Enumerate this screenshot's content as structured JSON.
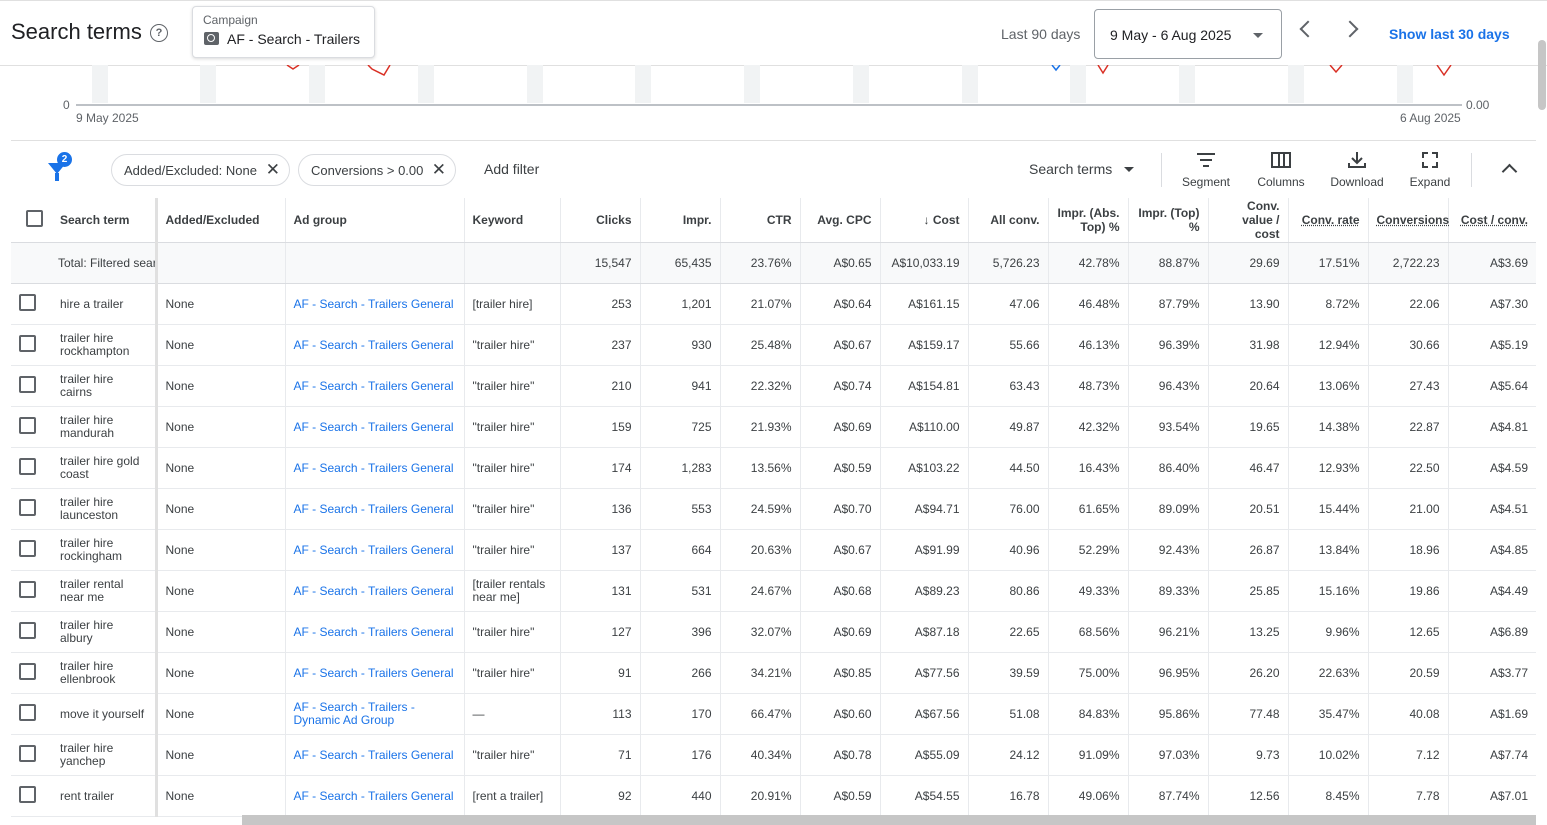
{
  "header": {
    "title": "Search terms",
    "campaign_label": "Campaign",
    "campaign_name": "AF - Search - Trailers",
    "date_label": "Last 90 days",
    "date_range": "9 May - 6 Aug 2025",
    "show_last": "Show last 30 days"
  },
  "chart": {
    "y_left_min": "0",
    "y_right_min": "0.00",
    "x_start": "9 May 2025",
    "x_end": "6 Aug 2025"
  },
  "filters": {
    "count": "2",
    "chips": [
      "Added/Excluded: None",
      "Conversions > 0.00"
    ],
    "add_filter": "Add filter",
    "view": "Search terms"
  },
  "toolbar": {
    "segment": "Segment",
    "columns": "Columns",
    "download": "Download",
    "expand": "Expand"
  },
  "table": {
    "headers": [
      "Search term",
      "Added/Excluded",
      "Ad group",
      "Keyword",
      "Clicks",
      "Impr.",
      "CTR",
      "Avg. CPC",
      "Cost",
      "All conv.",
      "Impr. (Abs. Top) %",
      "Impr. (Top) %",
      "Conv. value / cost",
      "Conv. rate",
      "Conversions",
      "Cost / conv."
    ],
    "total": [
      "Total: Filtered search ...",
      "",
      "",
      "",
      "15,547",
      "65,435",
      "23.76%",
      "A$0.65",
      "A$10,033.19",
      "5,726.23",
      "42.78%",
      "88.87%",
      "29.69",
      "17.51%",
      "2,722.23",
      "A$3.69"
    ],
    "rows": [
      [
        "hire a trailer",
        "None",
        "AF - Search - Trailers General",
        "[trailer hire]",
        "253",
        "1,201",
        "21.07%",
        "A$0.64",
        "A$161.15",
        "47.06",
        "46.48%",
        "87.79%",
        "13.90",
        "8.72%",
        "22.06",
        "A$7.30"
      ],
      [
        "trailer hire rockhampton",
        "None",
        "AF - Search - Trailers General",
        "\"trailer hire\"",
        "237",
        "930",
        "25.48%",
        "A$0.67",
        "A$159.17",
        "55.66",
        "46.13%",
        "96.39%",
        "31.98",
        "12.94%",
        "30.66",
        "A$5.19"
      ],
      [
        "trailer hire cairns",
        "None",
        "AF - Search - Trailers General",
        "\"trailer hire\"",
        "210",
        "941",
        "22.32%",
        "A$0.74",
        "A$154.81",
        "63.43",
        "48.73%",
        "96.43%",
        "20.64",
        "13.06%",
        "27.43",
        "A$5.64"
      ],
      [
        "trailer hire mandurah",
        "None",
        "AF - Search - Trailers General",
        "\"trailer hire\"",
        "159",
        "725",
        "21.93%",
        "A$0.69",
        "A$110.00",
        "49.87",
        "42.32%",
        "93.54%",
        "19.65",
        "14.38%",
        "22.87",
        "A$4.81"
      ],
      [
        "trailer hire gold coast",
        "None",
        "AF - Search - Trailers General",
        "\"trailer hire\"",
        "174",
        "1,283",
        "13.56%",
        "A$0.59",
        "A$103.22",
        "44.50",
        "16.43%",
        "86.40%",
        "46.47",
        "12.93%",
        "22.50",
        "A$4.59"
      ],
      [
        "trailer hire launceston",
        "None",
        "AF - Search - Trailers General",
        "\"trailer hire\"",
        "136",
        "553",
        "24.59%",
        "A$0.70",
        "A$94.71",
        "76.00",
        "61.65%",
        "89.09%",
        "20.51",
        "15.44%",
        "21.00",
        "A$4.51"
      ],
      [
        "trailer hire rockingham",
        "None",
        "AF - Search - Trailers General",
        "\"trailer hire\"",
        "137",
        "664",
        "20.63%",
        "A$0.67",
        "A$91.99",
        "40.96",
        "52.29%",
        "92.43%",
        "26.87",
        "13.84%",
        "18.96",
        "A$4.85"
      ],
      [
        "trailer rental near me",
        "None",
        "AF - Search - Trailers General",
        "[trailer rentals near me]",
        "131",
        "531",
        "24.67%",
        "A$0.68",
        "A$89.23",
        "80.86",
        "49.33%",
        "89.33%",
        "25.85",
        "15.16%",
        "19.86",
        "A$4.49"
      ],
      [
        "trailer hire albury",
        "None",
        "AF - Search - Trailers General",
        "\"trailer hire\"",
        "127",
        "396",
        "32.07%",
        "A$0.69",
        "A$87.18",
        "22.65",
        "68.56%",
        "96.21%",
        "13.25",
        "9.96%",
        "12.65",
        "A$6.89"
      ],
      [
        "trailer hire ellenbrook",
        "None",
        "AF - Search - Trailers General",
        "\"trailer hire\"",
        "91",
        "266",
        "34.21%",
        "A$0.85",
        "A$77.56",
        "39.59",
        "75.00%",
        "96.95%",
        "26.20",
        "22.63%",
        "20.59",
        "A$3.77"
      ],
      [
        "move it yourself",
        "None",
        "AF - Search - Trailers - Dynamic Ad Group",
        "—",
        "113",
        "170",
        "66.47%",
        "A$0.60",
        "A$67.56",
        "51.08",
        "84.83%",
        "95.86%",
        "77.48",
        "35.47%",
        "40.08",
        "A$1.69"
      ],
      [
        "trailer hire yanchep",
        "None",
        "AF - Search - Trailers General",
        "\"trailer hire\"",
        "71",
        "176",
        "40.34%",
        "A$0.78",
        "A$55.09",
        "24.12",
        "91.09%",
        "97.03%",
        "9.73",
        "10.02%",
        "7.12",
        "A$7.74"
      ],
      [
        "rent trailer",
        "None",
        "AF - Search - Trailers General",
        "[rent a trailer]",
        "92",
        "440",
        "20.91%",
        "A$0.59",
        "A$54.55",
        "16.78",
        "49.06%",
        "87.74%",
        "12.56",
        "8.45%",
        "7.78",
        "A$7.01"
      ]
    ]
  }
}
